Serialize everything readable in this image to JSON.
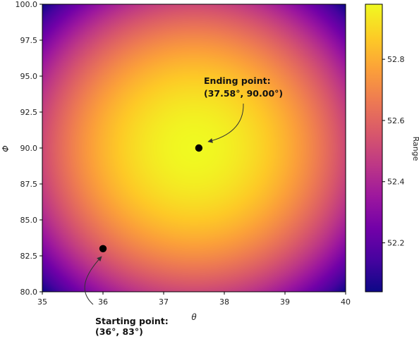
{
  "chart_data": {
    "type": "heatmap",
    "xlabel": "θ",
    "ylabel": "Φ",
    "colorbar_label": "Range",
    "xlim": [
      35,
      40
    ],
    "ylim": [
      80,
      100
    ],
    "x_ticks": [
      "35",
      "36",
      "37",
      "38",
      "39",
      "40"
    ],
    "y_ticks": [
      "80.0",
      "82.5",
      "85.0",
      "87.5",
      "90.0",
      "92.5",
      "95.0",
      "97.5",
      "100.0"
    ],
    "colorbar_range": [
      52.04,
      52.98
    ],
    "colorbar_ticks": [
      "52.2",
      "52.4",
      "52.6",
      "52.8"
    ],
    "colormap": "plasma",
    "points": [
      {
        "x": 36.0,
        "y": 83.0
      },
      {
        "x": 37.58,
        "y": 90.0
      }
    ],
    "annotations": [
      {
        "line1": "Starting point:",
        "line2": "(36°, 83°)"
      },
      {
        "line1": "Ending point:",
        "line2": "(37.58°, 90.00°)"
      }
    ],
    "field": {
      "max_value": 52.98,
      "min_value": 52.04,
      "peak_x": 37.5,
      "peak_y": 90.0
    }
  }
}
